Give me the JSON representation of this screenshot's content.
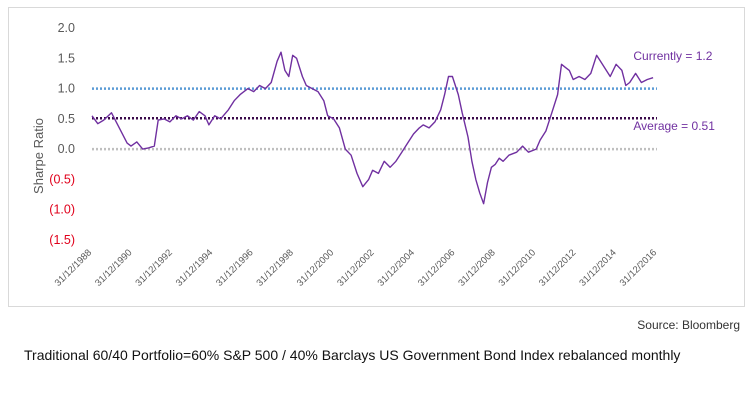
{
  "chart_data": {
    "type": "line",
    "title": "",
    "xlabel": "",
    "ylabel": "Sharpe Ratio",
    "ylim": [
      -1.5,
      2.0
    ],
    "y_ticks": [
      {
        "value": 2.0,
        "label": "2.0",
        "color": "#595959"
      },
      {
        "value": 1.5,
        "label": "1.5",
        "color": "#595959"
      },
      {
        "value": 1.0,
        "label": "1.0",
        "color": "#595959"
      },
      {
        "value": 0.5,
        "label": "0.5",
        "color": "#595959"
      },
      {
        "value": 0.0,
        "label": "0.0",
        "color": "#595959"
      },
      {
        "value": -0.5,
        "label": "(0.5)",
        "color": "#e0001b"
      },
      {
        "value": -1.0,
        "label": "(1.0)",
        "color": "#e0001b"
      },
      {
        "value": -1.5,
        "label": "(1.5)",
        "color": "#e0001b"
      }
    ],
    "x_tick_labels": [
      "31/12/1988",
      "31/12/1990",
      "31/12/1992",
      "31/12/1994",
      "31/12/1996",
      "31/12/1998",
      "31/12/2000",
      "31/12/2002",
      "31/12/2004",
      "31/12/2006",
      "31/12/2008",
      "31/12/2010",
      "31/12/2012",
      "31/12/2014",
      "31/12/2016"
    ],
    "xlim": [
      1988.0,
      2017.0
    ],
    "grid": false,
    "series": [
      {
        "color": "#7030a0",
        "x": [
          1988.0,
          1988.3,
          1988.6,
          1989.0,
          1989.4,
          1989.8,
          1990.0,
          1990.3,
          1990.6,
          1990.9,
          1991.2,
          1991.4,
          1991.7,
          1992.0,
          1992.3,
          1992.6,
          1992.9,
          1993.2,
          1993.5,
          1993.8,
          1994.0,
          1994.3,
          1994.6,
          1995.0,
          1995.3,
          1995.6,
          1996.0,
          1996.3,
          1996.6,
          1996.9,
          1997.2,
          1997.5,
          1997.7,
          1997.9,
          1998.1,
          1998.3,
          1998.5,
          1998.8,
          1999.0,
          1999.3,
          1999.6,
          1999.9,
          2000.1,
          2000.4,
          2000.7,
          2001.0,
          2001.3,
          2001.6,
          2001.9,
          2002.2,
          2002.4,
          2002.7,
          2003.0,
          2003.3,
          2003.6,
          2003.9,
          2004.2,
          2004.5,
          2004.8,
          2005.0,
          2005.3,
          2005.6,
          2005.9,
          2006.1,
          2006.3,
          2006.5,
          2006.8,
          2007.0,
          2007.3,
          2007.5,
          2007.7,
          2007.9,
          2008.1,
          2008.3,
          2008.5,
          2008.7,
          2008.9,
          2009.1,
          2009.4,
          2009.8,
          2010.1,
          2010.4,
          2010.8,
          2011.0,
          2011.3,
          2011.6,
          2011.9,
          2012.1,
          2012.3,
          2012.5,
          2012.7,
          2013.0,
          2013.3,
          2013.6,
          2013.9,
          2014.1,
          2014.3,
          2014.6,
          2014.9,
          2015.2,
          2015.4,
          2015.6,
          2015.9,
          2016.2,
          2016.5,
          2016.8
        ],
        "y": [
          0.55,
          0.42,
          0.48,
          0.6,
          0.35,
          0.1,
          0.05,
          0.12,
          0.0,
          0.02,
          0.05,
          0.48,
          0.5,
          0.45,
          0.55,
          0.5,
          0.55,
          0.48,
          0.62,
          0.55,
          0.4,
          0.55,
          0.5,
          0.65,
          0.8,
          0.9,
          1.0,
          0.95,
          1.05,
          1.0,
          1.1,
          1.45,
          1.6,
          1.3,
          1.2,
          1.55,
          1.5,
          1.2,
          1.05,
          1.0,
          0.95,
          0.8,
          0.55,
          0.5,
          0.35,
          0.0,
          -0.1,
          -0.4,
          -0.62,
          -0.5,
          -0.35,
          -0.4,
          -0.2,
          -0.3,
          -0.2,
          -0.05,
          0.1,
          0.25,
          0.35,
          0.4,
          0.35,
          0.45,
          0.65,
          0.9,
          1.2,
          1.2,
          0.9,
          0.6,
          0.2,
          -0.2,
          -0.5,
          -0.72,
          -0.9,
          -0.55,
          -0.3,
          -0.25,
          -0.15,
          -0.2,
          -0.1,
          -0.05,
          0.05,
          -0.05,
          0.0,
          0.15,
          0.3,
          0.6,
          0.9,
          1.4,
          1.35,
          1.3,
          1.15,
          1.2,
          1.15,
          1.25,
          1.55,
          1.45,
          1.35,
          1.2,
          1.4,
          1.3,
          1.05,
          1.1,
          1.25,
          1.1,
          1.15,
          1.18
        ]
      }
    ],
    "reference_lines": [
      {
        "value": 1.0,
        "color": "#5b9bd5",
        "style": "dotted"
      },
      {
        "value": 0.51,
        "color": "#3a0a4a",
        "style": "dotted"
      },
      {
        "value": 0.0,
        "color": "#bfbfbf",
        "style": "dotted"
      }
    ],
    "annotations": [
      {
        "text": "Currently = 1.2",
        "x": 2016.3,
        "y": 1.47
      },
      {
        "text": "Average = 0.51",
        "x": 2016.3,
        "y": 0.32
      }
    ]
  },
  "source": "Source: Bloomberg",
  "caption": "Traditional 60/40 Portfolio=60% S&P 500 / 40% Barclays US Government Bond Index rebalanced monthly"
}
